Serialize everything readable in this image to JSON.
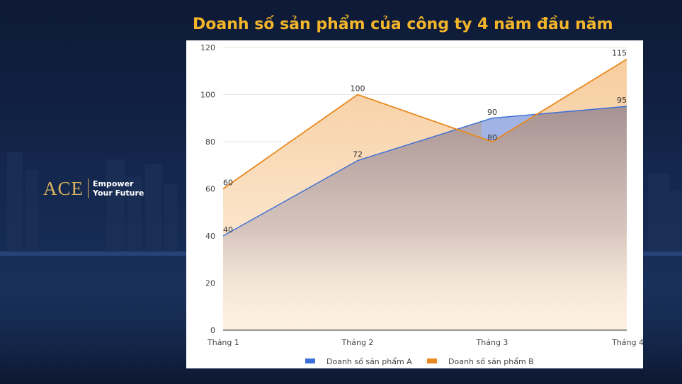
{
  "title": "Doanh số sản phẩm của công ty 4 năm đầu năm",
  "logo": {
    "mark": "ACE",
    "tagline_line1": "Empower",
    "tagline_line2": "Your Future"
  },
  "colors": {
    "title": "#f2b52b",
    "series_a": "#3c6fd8",
    "series_b": "#e8891f",
    "background": "#0e1a36"
  },
  "chart_data": {
    "type": "area",
    "categories": [
      "Tháng 1",
      "Tháng 2",
      "Tháng 3",
      "Tháng 4"
    ],
    "series": [
      {
        "name": "Doanh số sản phẩm A",
        "values": [
          40,
          72,
          90,
          95
        ],
        "color": "#3c6fd8"
      },
      {
        "name": "Doanh số sản phẩm B",
        "values": [
          60,
          100,
          80,
          115
        ],
        "color": "#e8891f"
      }
    ],
    "yticks": [
      0,
      20,
      40,
      60,
      80,
      100,
      120
    ],
    "ylim": [
      0,
      120
    ],
    "grid": true,
    "legend": "bottom",
    "data_labels": true
  }
}
